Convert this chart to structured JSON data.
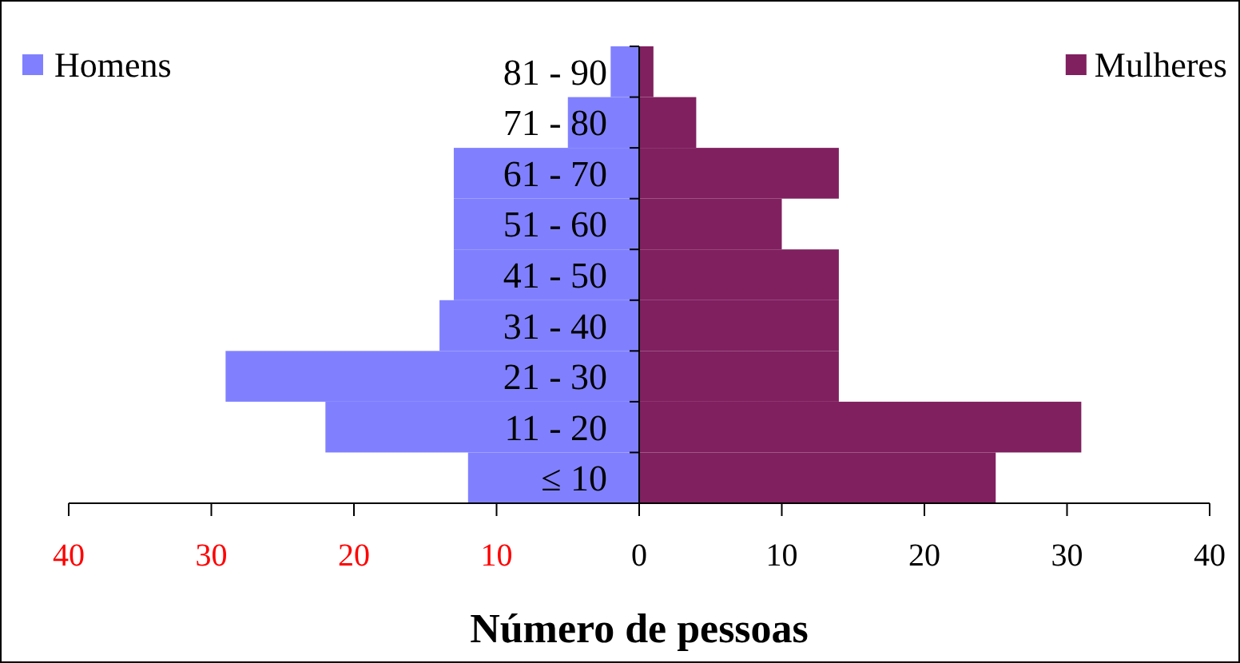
{
  "chart_data": {
    "type": "bar",
    "orientation": "horizontal",
    "xlabel": "Número de pessoas",
    "categories": [
      "81 - 90",
      "71 - 80",
      "61 - 70",
      "51 - 60",
      "41 - 50",
      "31 - 40",
      "21 - 30",
      "11 - 20",
      "≤ 10"
    ],
    "series": [
      {
        "name": "Homens",
        "color": "#8080ff",
        "values": [
          -2,
          -5,
          -13,
          -13,
          -13,
          -14,
          -29,
          -22,
          -12
        ]
      },
      {
        "name": "Mulheres",
        "color": "#80205f",
        "values": [
          1,
          4,
          14,
          10,
          14,
          14,
          14,
          31,
          25
        ]
      }
    ],
    "xlim": [
      -40,
      40
    ],
    "xticks": [
      {
        "value": -40,
        "label": "40"
      },
      {
        "value": -30,
        "label": "30"
      },
      {
        "value": -20,
        "label": "20"
      },
      {
        "value": -10,
        "label": "10"
      },
      0,
      10,
      20,
      30,
      40
    ],
    "stacked": true,
    "grid": false,
    "legend": "top"
  }
}
